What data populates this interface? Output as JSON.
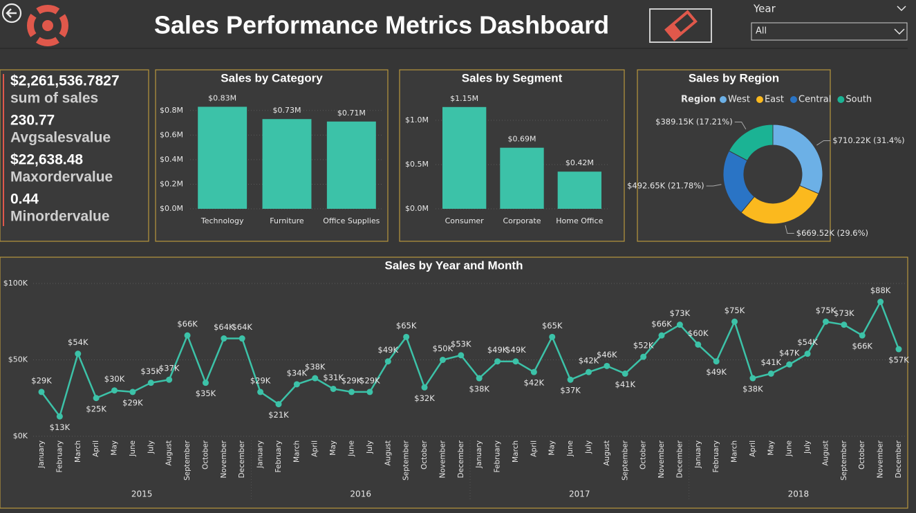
{
  "header": {
    "title": "Sales Performance Metrics Dashboard"
  },
  "slicer": {
    "label": "Year",
    "value": "All"
  },
  "kpis": [
    {
      "value": "$2,261,536.7827",
      "label": "sum of sales"
    },
    {
      "value": "230.77",
      "label": "Avgsalesvalue"
    },
    {
      "value": "$22,638.48",
      "label": "Maxordervalue"
    },
    {
      "value": "0.44",
      "label": "Minordervalue"
    }
  ],
  "chart_data": [
    {
      "type": "bar",
      "title": "Sales by Category",
      "color": "#3cc2a8",
      "categories": [
        "Technology",
        "Furniture",
        "Office Supplies"
      ],
      "values": [
        830000,
        730000,
        710000
      ],
      "value_labels": [
        "$0.83M",
        "$0.73M",
        "$0.71M"
      ],
      "ylim": [
        0,
        900000
      ],
      "yticks": [
        {
          "value": 0,
          "label": "$0.0M"
        },
        {
          "value": 200000,
          "label": "$0.2M"
        },
        {
          "value": 400000,
          "label": "$0.4M"
        },
        {
          "value": 600000,
          "label": "$0.6M"
        },
        {
          "value": 800000,
          "label": "$0.8M"
        }
      ],
      "grid": true
    },
    {
      "type": "bar",
      "title": "Sales by Segment",
      "color": "#3cc2a8",
      "categories": [
        "Consumer",
        "Corporate",
        "Home Office"
      ],
      "values": [
        1150000,
        690000,
        420000
      ],
      "value_labels": [
        "$1.15M",
        "$0.69M",
        "$0.42M"
      ],
      "ylim": [
        0,
        1250000
      ],
      "yticks": [
        {
          "value": 0,
          "label": "$0.0M"
        },
        {
          "value": 500000,
          "label": "$0.5M"
        },
        {
          "value": 1000000,
          "label": "$1.0M"
        }
      ],
      "grid": true
    },
    {
      "type": "pie",
      "title": "Sales by Region",
      "legend_title": "Region",
      "donut": true,
      "categories": [
        "West",
        "East",
        "Central",
        "South"
      ],
      "values": [
        710220,
        669520,
        492650,
        389150
      ],
      "value_labels": [
        "$710.22K (31.4%)",
        "$669.52K (29.6%)",
        "$492.65K (21.78%)",
        "$389.15K (17.21%)"
      ],
      "colors": [
        "#6cb0e6",
        "#fbb91e",
        "#2a74c5",
        "#1bb394"
      ]
    },
    {
      "type": "line",
      "title": "Sales by Year and Month",
      "color": "#3cc2a8",
      "categories": [
        "January",
        "February",
        "March",
        "April",
        "May",
        "June",
        "July",
        "August",
        "September",
        "October",
        "November",
        "December",
        "January",
        "February",
        "March",
        "April",
        "May",
        "June",
        "July",
        "August",
        "September",
        "October",
        "November",
        "December",
        "January",
        "February",
        "March",
        "April",
        "May",
        "June",
        "July",
        "August",
        "September",
        "October",
        "November",
        "December",
        "January",
        "February",
        "March",
        "April",
        "May",
        "June",
        "July",
        "August",
        "September",
        "October",
        "November",
        "December"
      ],
      "groups": [
        "2015",
        "2016",
        "2017",
        "2018"
      ],
      "values": [
        29000,
        13000,
        54000,
        25000,
        30000,
        29000,
        35000,
        37000,
        66000,
        35000,
        64000,
        64000,
        29000,
        21000,
        34000,
        38000,
        31000,
        29000,
        29000,
        49000,
        65000,
        32000,
        50000,
        53000,
        38000,
        49000,
        49000,
        42000,
        65000,
        37000,
        42000,
        46000,
        41000,
        52000,
        66000,
        73000,
        60000,
        49000,
        75000,
        38000,
        41000,
        47000,
        54000,
        75000,
        73000,
        66000,
        88000,
        57000
      ],
      "value_labels": [
        "$29K",
        "$13K",
        "$54K",
        "$25K",
        "$30K",
        "$29K",
        "$35K",
        "$37K",
        "$66K",
        "$35K",
        "$64K",
        "$64K",
        "$29K",
        "$21K",
        "$34K",
        "$38K",
        "$31K",
        "$29K",
        "$29K",
        "$49K",
        "$65K",
        "$32K",
        "$50K",
        "$53K",
        "$38K",
        "$49K",
        "$49K",
        "$42K",
        "$65K",
        "$37K",
        "$42K",
        "$46K",
        "$41K",
        "$52K",
        "$66K",
        "$73K",
        "$60K",
        "$49K",
        "$75K",
        "$38K",
        "$41K",
        "$47K",
        "$54K",
        "$75K",
        "$73K",
        "$66K",
        "$88K",
        "$57K"
      ],
      "ylim": [
        0,
        100000
      ],
      "yticks": [
        {
          "value": 0,
          "label": "$0K"
        },
        {
          "value": 50000,
          "label": "$50K"
        },
        {
          "value": 100000,
          "label": "$100K"
        }
      ],
      "grid": true
    }
  ]
}
